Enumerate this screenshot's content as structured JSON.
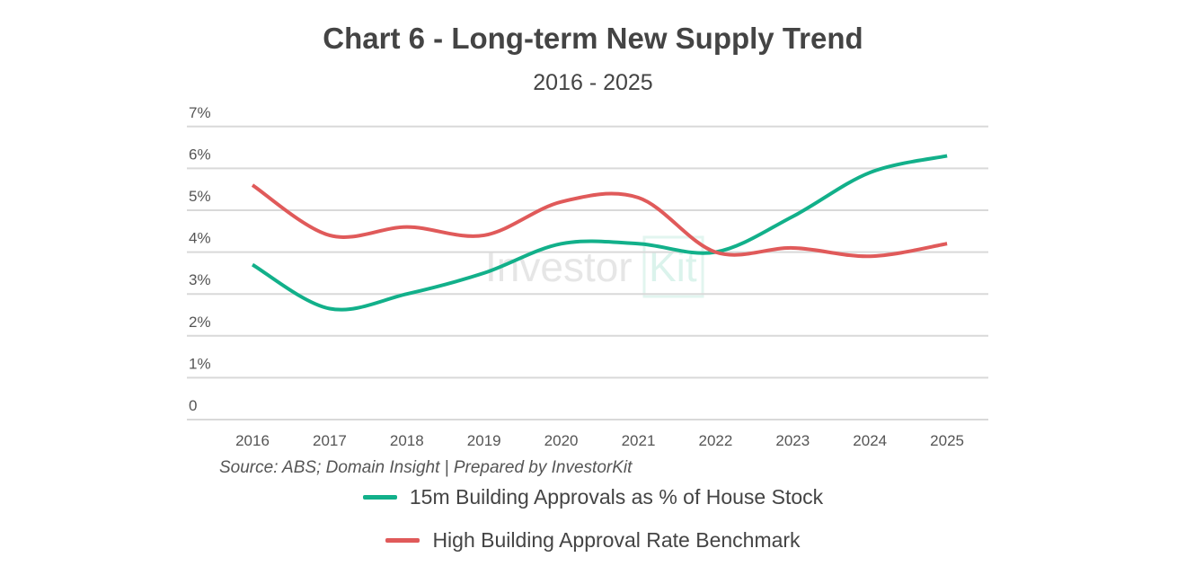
{
  "chart_data": {
    "type": "line",
    "title": "Chart 6 - Long-term New Supply Trend",
    "subtitle": "2016 - 2025",
    "categories": [
      "2016",
      "2017",
      "2018",
      "2019",
      "2020",
      "2021",
      "2022",
      "2023",
      "2024",
      "2025"
    ],
    "y_ticks": [
      "0",
      "1%",
      "2%",
      "3%",
      "4%",
      "5%",
      "6%",
      "7%"
    ],
    "ylim": [
      0,
      7
    ],
    "y_unit": "%",
    "grid": "horizontal",
    "legend_position": "bottom",
    "smooth": true,
    "series": [
      {
        "name": "15m Building Approvals as % of House Stock",
        "color": "#12b08a",
        "values": [
          3.7,
          2.65,
          3.0,
          3.5,
          4.2,
          4.2,
          4.0,
          4.85,
          5.9,
          6.3
        ]
      },
      {
        "name": "High Building Approval Rate Benchmark",
        "color": "#e05a5a",
        "values": [
          5.6,
          4.4,
          4.6,
          4.4,
          5.2,
          5.3,
          4.0,
          4.1,
          3.9,
          4.2
        ]
      }
    ],
    "source": "Source: ABS; Domain Insight | Prepared by InvestorKit"
  },
  "watermark": {
    "text_left": "Investor",
    "text_right": "Kit"
  }
}
